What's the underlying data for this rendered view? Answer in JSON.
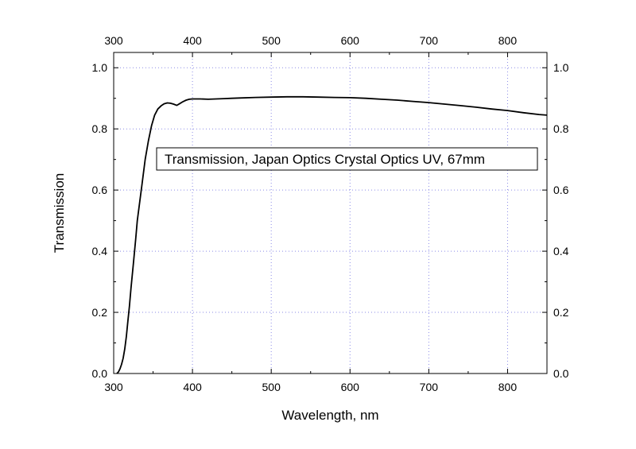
{
  "chart_data": {
    "type": "line",
    "title": "",
    "xlabel": "Wavelength, nm",
    "ylabel": "Transmission",
    "xlim": [
      300,
      850
    ],
    "ylim": [
      0.0,
      1.05
    ],
    "x_ticks": [
      300,
      400,
      500,
      600,
      700,
      800
    ],
    "y_ticks": [
      0.0,
      0.2,
      0.4,
      0.6,
      0.8,
      1.0
    ],
    "x_tick_labels": [
      "300",
      "400",
      "500",
      "600",
      "700",
      "800"
    ],
    "y_tick_labels": [
      "0.0",
      "0.2",
      "0.4",
      "0.6",
      "0.8",
      "1.0"
    ],
    "grid": true,
    "mirror_axes": "top and right",
    "annotation": "Transmission, Japan Optics Crystal Optics UV, 67mm",
    "series": [
      {
        "color": "#000000",
        "x": [
          304,
          306,
          308,
          310,
          312,
          314,
          316,
          318,
          320,
          322,
          325,
          328,
          330,
          333,
          336,
          340,
          344,
          348,
          352,
          356,
          360,
          364,
          368,
          372,
          376,
          380,
          384,
          388,
          392,
          396,
          400,
          410,
          420,
          430,
          440,
          450,
          460,
          480,
          500,
          520,
          540,
          560,
          580,
          600,
          620,
          640,
          660,
          680,
          700,
          720,
          740,
          760,
          780,
          800,
          820,
          840,
          850
        ],
        "y": [
          0.0,
          0.005,
          0.015,
          0.03,
          0.05,
          0.08,
          0.12,
          0.17,
          0.22,
          0.28,
          0.36,
          0.44,
          0.5,
          0.56,
          0.62,
          0.7,
          0.76,
          0.81,
          0.845,
          0.865,
          0.875,
          0.882,
          0.885,
          0.884,
          0.881,
          0.877,
          0.883,
          0.889,
          0.894,
          0.897,
          0.898,
          0.898,
          0.897,
          0.898,
          0.899,
          0.9,
          0.901,
          0.903,
          0.904,
          0.905,
          0.905,
          0.904,
          0.903,
          0.902,
          0.9,
          0.897,
          0.894,
          0.89,
          0.886,
          0.881,
          0.876,
          0.871,
          0.865,
          0.86,
          0.853,
          0.847,
          0.845
        ]
      }
    ]
  }
}
